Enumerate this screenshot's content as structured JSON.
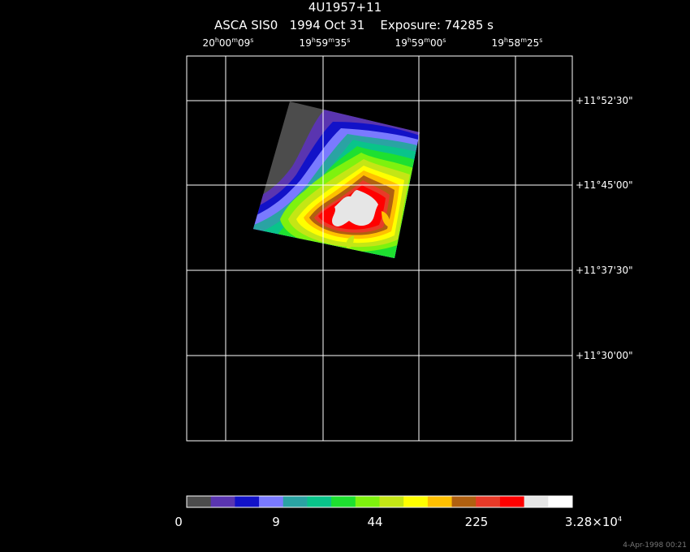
{
  "title": "4U1957+11",
  "subtitle": "ASCA SIS0   1994 Oct 31    Exposure: 74285 s",
  "ra_ticks": [
    {
      "h": "20",
      "m": "00",
      "s": "09"
    },
    {
      "h": "19",
      "m": "59",
      "s": "35"
    },
    {
      "h": "19",
      "m": "59",
      "s": "00"
    },
    {
      "h": "19",
      "m": "58",
      "s": "25"
    }
  ],
  "dec_ticks": [
    "+11°52'30\"",
    "+11°45'00\"",
    "+11°37'30\"",
    "+11°30'00\""
  ],
  "colorbar": {
    "labels": [
      "0",
      "9",
      "44",
      "225",
      "3.28×10"
    ],
    "top_exponent": "4",
    "colors": [
      "#4c4c4c",
      "#5a35b0",
      "#1212c8",
      "#7a7aff",
      "#2aa3a3",
      "#09c48a",
      "#1ee030",
      "#7ef20e",
      "#c4e615",
      "#ffff00",
      "#ffc000",
      "#b06010",
      "#e83a28",
      "#ff0000",
      "#e6e6e6",
      "#ffffff"
    ]
  },
  "footer": "4-Apr-1998 00:21"
}
